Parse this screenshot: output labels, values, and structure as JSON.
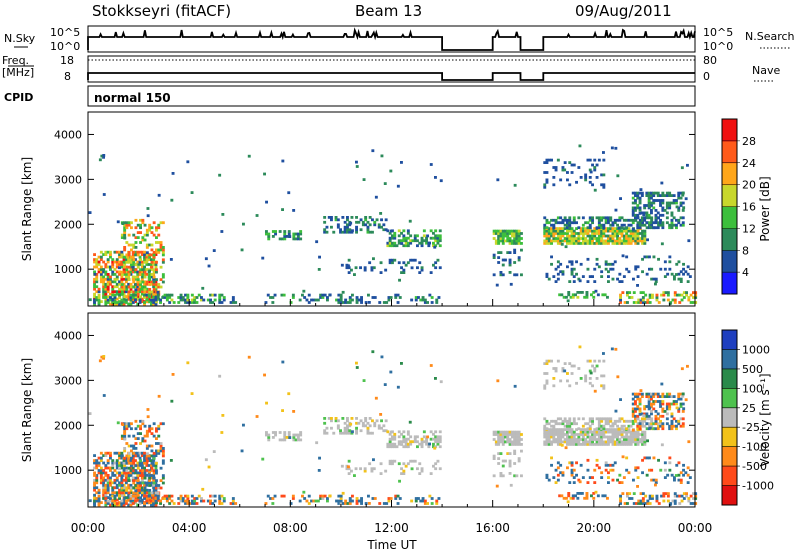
{
  "header": {
    "station": "Stokkseyri (fitACF)",
    "beam": "Beam 13",
    "date": "09/Aug/2011"
  },
  "status_panels": {
    "nsky_label": "N.Sky",
    "nsky_ticks": [
      "10^5",
      "10^0"
    ],
    "nsearch_label": "N.Search",
    "nsearch_ticks": [
      "10^5",
      "10^0"
    ],
    "freq_label": "Freq.",
    "freq_unit": "[MHz]",
    "freq_ticks": [
      "18",
      "8"
    ],
    "nave_label": "Nave",
    "nave_ticks": [
      "80",
      "0"
    ],
    "cpid_label": "CPID",
    "cpid_value": "normal 150",
    "data_gaps_ut": [
      [
        14.0,
        16.0
      ],
      [
        17.1,
        18.0
      ]
    ]
  },
  "chart_data": [
    {
      "type": "heatmap",
      "name": "power",
      "ylabel": "Slant Range [km]",
      "xlabel": "Time UT",
      "ylim": [
        180,
        4500
      ],
      "xlim": [
        0,
        24
      ],
      "x_ticks": [
        "00:00",
        "04:00",
        "08:00",
        "12:00",
        "16:00",
        "20:00",
        "00:00"
      ],
      "y_ticks": [
        1000,
        2000,
        3000,
        4000
      ],
      "colorbar_label": "Power [dB]",
      "colorbar_ticks": [
        "4",
        "8",
        "12",
        "16",
        "20",
        "24",
        "28"
      ],
      "colorbar_range": [
        0,
        30
      ],
      "colors": [
        "#1a1aff",
        "#1f4f9f",
        "#2c8a5a",
        "#3cbf3c",
        "#c8d72c",
        "#ffa61a",
        "#ff5a1a",
        "#f01010"
      ]
    },
    {
      "type": "heatmap",
      "name": "velocity",
      "ylabel": "Slant Range [km]",
      "xlabel": "Time UT",
      "ylim": [
        180,
        4500
      ],
      "xlim": [
        0,
        24
      ],
      "x_ticks": [
        "00:00",
        "04:00",
        "08:00",
        "12:00",
        "16:00",
        "20:00",
        "00:00"
      ],
      "y_ticks": [
        1000,
        2000,
        3000,
        4000
      ],
      "colorbar_label": "Velocity [m s⁻¹]",
      "colorbar_ticks": [
        "1000",
        "500",
        "100",
        "25",
        "-25",
        "-100",
        "-500",
        "-1000"
      ],
      "colors": [
        "#1f3fbf",
        "#2f6fa0",
        "#2a8a4a",
        "#4ec24e",
        "#bbbbbb",
        "#f2c21a",
        "#ff8a1a",
        "#ff4a1a",
        "#e01010"
      ]
    }
  ]
}
